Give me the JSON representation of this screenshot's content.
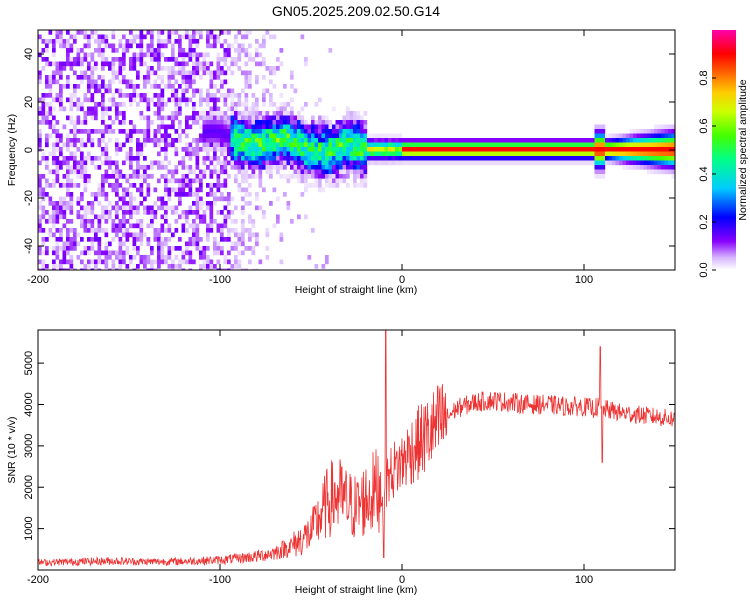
{
  "chart_data": [
    {
      "type": "heatmap",
      "title": "GN05.2025.209.02.50.G14",
      "xlabel": "Height of straight line (km)",
      "ylabel": "Frequency (Hz)",
      "xlim": [
        -200,
        150
      ],
      "ylim": [
        -50,
        50
      ],
      "x_ticks": [
        -200,
        -100,
        0,
        100
      ],
      "y_ticks": [
        -40,
        -20,
        0,
        20,
        40
      ],
      "colorbar": {
        "label": "Normalized spectral amplitude",
        "range": [
          0,
          1
        ],
        "ticks": [
          0.0,
          0.2,
          0.4,
          0.6,
          0.8
        ],
        "colormap": [
          "#ffffff",
          "#8800ff",
          "#0000ff",
          "#00ffff",
          "#00ff00",
          "#ffff00",
          "#ff8800",
          "#ff0000",
          "#ff00aa"
        ]
      },
      "features": {
        "noise_region_x": [
          -200,
          -95
        ],
        "noise_amplitude": 0.1,
        "ridge_x": [
          -95,
          150
        ],
        "ridge_start_freq_hz": 6,
        "ridge_end_freq_hz": 0,
        "ridge_peak_amplitude": 0.9,
        "spike_x": 108
      }
    },
    {
      "type": "line",
      "xlabel": "Height of straight line (km)",
      "ylabel": "SNR (10 * v/v)",
      "xlim": [
        -200,
        150
      ],
      "ylim": [
        0,
        5800
      ],
      "x_ticks": [
        -200,
        -100,
        0,
        100
      ],
      "y_ticks": [
        1000,
        2000,
        3000,
        4000,
        5000
      ],
      "line_color": "#ee3333",
      "series": [
        {
          "x": [
            -200,
            -180,
            -160,
            -140,
            -120,
            -100,
            -90,
            -80,
            -70,
            -60,
            -50,
            -45,
            -40,
            -35,
            -30,
            -25,
            -20,
            -15,
            -12,
            -10,
            -8,
            -5,
            0,
            5,
            10,
            15,
            20,
            25,
            30,
            40,
            50,
            60,
            70,
            80,
            90,
            100,
            105,
            108,
            110,
            115,
            120,
            130,
            140,
            150
          ],
          "values": [
            180,
            200,
            220,
            200,
            210,
            240,
            280,
            330,
            420,
            600,
            900,
            1300,
            1700,
            1800,
            1600,
            1500,
            1700,
            1900,
            2000,
            2100,
            2200,
            2400,
            2600,
            2900,
            3100,
            3300,
            3500,
            3700,
            3900,
            4050,
            4100,
            4050,
            4000,
            4000,
            3950,
            3950,
            3900,
            3950,
            3900,
            3850,
            3800,
            3750,
            3700,
            3650
          ],
          "spikes": [
            {
              "x": -9,
              "value": 5800
            },
            {
              "x": -10,
              "value": 300
            },
            {
              "x": 109,
              "value": 5400
            },
            {
              "x": 110,
              "value": 2600
            }
          ]
        }
      ]
    }
  ]
}
